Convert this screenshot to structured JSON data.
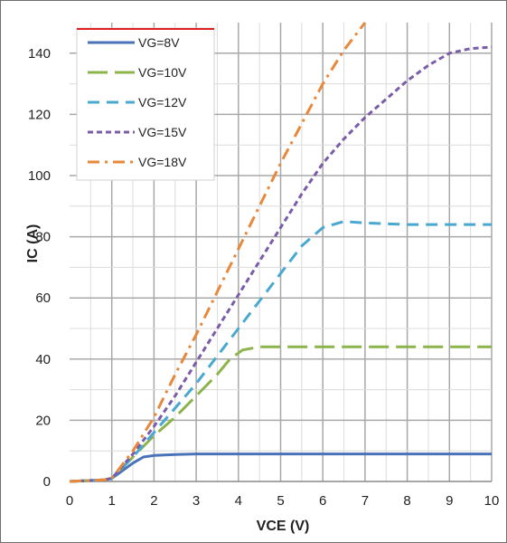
{
  "chart_data": {
    "type": "line",
    "title": "",
    "xlabel": "VCE (V)",
    "ylabel": "IC (A)",
    "xlim": [
      0,
      10
    ],
    "ylim": [
      0,
      150
    ],
    "xticks": [
      "0",
      "1",
      "2",
      "3",
      "4",
      "5",
      "6",
      "7",
      "8",
      "9",
      "10"
    ],
    "yticks": [
      "0",
      "20",
      "40",
      "60",
      "80",
      "100",
      "120",
      "140"
    ],
    "grid": true,
    "legend_position": "top-left",
    "series": [
      {
        "name": "VG=8V",
        "color": "#4a72b8",
        "style": "solid",
        "points": [
          [
            0,
            0
          ],
          [
            0.8,
            0.5
          ],
          [
            1,
            1
          ],
          [
            1.25,
            3.5
          ],
          [
            1.5,
            6
          ],
          [
            1.75,
            8
          ],
          [
            2,
            8.5
          ],
          [
            2.5,
            8.8
          ],
          [
            3,
            9
          ],
          [
            4,
            9
          ],
          [
            5,
            9
          ],
          [
            6,
            9
          ],
          [
            7,
            9
          ],
          [
            8,
            9
          ],
          [
            9,
            9
          ],
          [
            10,
            9
          ]
        ]
      },
      {
        "name": "VG=10V",
        "color": "#8cb44a",
        "style": "long-dash",
        "points": [
          [
            0,
            0
          ],
          [
            0.8,
            0.5
          ],
          [
            1,
            1
          ],
          [
            1.5,
            8
          ],
          [
            2,
            15
          ],
          [
            2.5,
            21
          ],
          [
            3,
            28
          ],
          [
            3.5,
            35
          ],
          [
            3.8,
            40
          ],
          [
            4.1,
            43
          ],
          [
            4.5,
            44
          ],
          [
            5,
            44
          ],
          [
            6,
            44
          ],
          [
            7,
            44
          ],
          [
            8,
            44
          ],
          [
            9,
            44
          ],
          [
            10,
            44
          ]
        ]
      },
      {
        "name": "VG=12V",
        "color": "#49a8cf",
        "style": "dash",
        "points": [
          [
            0,
            0
          ],
          [
            0.8,
            0.5
          ],
          [
            1,
            1
          ],
          [
            1.5,
            8
          ],
          [
            2,
            16
          ],
          [
            2.5,
            24
          ],
          [
            3,
            32
          ],
          [
            3.5,
            41
          ],
          [
            4,
            50
          ],
          [
            4.5,
            59
          ],
          [
            5,
            68
          ],
          [
            5.5,
            77
          ],
          [
            6,
            83
          ],
          [
            6.5,
            85
          ],
          [
            7,
            84.5
          ],
          [
            8,
            84
          ],
          [
            9,
            84
          ],
          [
            10,
            84
          ]
        ]
      },
      {
        "name": "VG=15V",
        "color": "#7a5ca8",
        "style": "short-dash",
        "points": [
          [
            0,
            0
          ],
          [
            0.8,
            0.5
          ],
          [
            1,
            1
          ],
          [
            1.5,
            9
          ],
          [
            2,
            18
          ],
          [
            2.5,
            28
          ],
          [
            3,
            39
          ],
          [
            3.5,
            50
          ],
          [
            4,
            61
          ],
          [
            4.5,
            72
          ],
          [
            5,
            83
          ],
          [
            5.5,
            94
          ],
          [
            6,
            104
          ],
          [
            6.5,
            112
          ],
          [
            7,
            119
          ],
          [
            7.5,
            125
          ],
          [
            8,
            131
          ],
          [
            8.5,
            136
          ],
          [
            9,
            140
          ],
          [
            9.5,
            141.5
          ],
          [
            10,
            142
          ]
        ]
      },
      {
        "name": "VG=18V",
        "color": "#e8883a",
        "style": "dash-dot",
        "points": [
          [
            0,
            0
          ],
          [
            0.8,
            0.5
          ],
          [
            1,
            1
          ],
          [
            1.5,
            10
          ],
          [
            2,
            21
          ],
          [
            2.5,
            35
          ],
          [
            3,
            48
          ],
          [
            3.5,
            62
          ],
          [
            4,
            76
          ],
          [
            4.5,
            90
          ],
          [
            5,
            104
          ],
          [
            5.5,
            117
          ],
          [
            6,
            130
          ],
          [
            6.5,
            141
          ],
          [
            7,
            150
          ]
        ]
      }
    ]
  }
}
